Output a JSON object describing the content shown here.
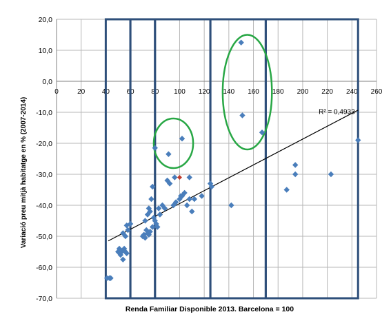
{
  "chart_data": {
    "type": "scatter",
    "xlabel": "Renda Familiar Disponible 2013. Barcelona = 100",
    "ylabel": "Variació preu mitjà habitatge en % (2007-2014)",
    "xlim": [
      0,
      260
    ],
    "ylim": [
      -70,
      20
    ],
    "x_ticks": [
      0,
      20,
      40,
      60,
      80,
      100,
      120,
      140,
      160,
      180,
      200,
      220,
      240,
      260
    ],
    "y_ticks": [
      20,
      10,
      0,
      -10,
      -20,
      -30,
      -40,
      -50,
      -60,
      -70
    ],
    "y_tick_labels": [
      "20,0",
      "10,0",
      "0,0",
      "-10,0",
      "-20,0",
      "-30,0",
      "-40,0",
      "-50,0",
      "-60,0",
      "-70,0"
    ],
    "grid": true,
    "trendline": {
      "r2_label": "R² = 0,4933",
      "x": [
        42,
        245
      ],
      "y": [
        -51.5,
        -9.3
      ]
    },
    "points": [
      [
        41,
        -63.5
      ],
      [
        43,
        -63.5
      ],
      [
        44,
        -63.5
      ],
      [
        50,
        -55
      ],
      [
        51,
        -54
      ],
      [
        52,
        -56
      ],
      [
        53,
        -55
      ],
      [
        54,
        -57.5
      ],
      [
        55,
        -54
      ],
      [
        56,
        -55
      ],
      [
        57,
        -55.5
      ],
      [
        54,
        -49
      ],
      [
        56,
        -50
      ],
      [
        57,
        -46.5
      ],
      [
        58,
        -48
      ],
      [
        60,
        -46
      ],
      [
        70,
        -50
      ],
      [
        71,
        -49.5
      ],
      [
        72,
        -50.5
      ],
      [
        73,
        -48
      ],
      [
        74,
        -49
      ],
      [
        75,
        -49.5
      ],
      [
        76,
        -48.5
      ],
      [
        78,
        -47
      ],
      [
        72,
        -45
      ],
      [
        74,
        -43
      ],
      [
        75,
        -41
      ],
      [
        76,
        -42
      ],
      [
        77,
        -38
      ],
      [
        78,
        -34
      ],
      [
        79,
        -44
      ],
      [
        80,
        -45
      ],
      [
        81,
        -46
      ],
      [
        82,
        -47
      ],
      [
        83,
        -41
      ],
      [
        84,
        -43
      ],
      [
        86,
        -40
      ],
      [
        88,
        -41
      ],
      [
        90,
        -32
      ],
      [
        92,
        -33
      ],
      [
        95,
        -40
      ],
      [
        97,
        -39
      ],
      [
        100,
        -38
      ],
      [
        101,
        -37
      ],
      [
        102,
        -37
      ],
      [
        104,
        -36
      ],
      [
        106,
        -40
      ],
      [
        108,
        -38
      ],
      [
        110,
        -42
      ],
      [
        112,
        -38
      ],
      [
        96,
        -31
      ],
      [
        108,
        -31
      ],
      [
        118,
        -37
      ],
      [
        125,
        -33
      ],
      [
        126,
        -34
      ],
      [
        80,
        -21.5
      ],
      [
        91,
        -23.5
      ],
      [
        102,
        -18.5
      ],
      [
        142,
        -40
      ],
      [
        150,
        12.5
      ],
      [
        151,
        -11
      ],
      [
        167,
        -16.5
      ],
      [
        187,
        -35
      ],
      [
        194,
        -27
      ],
      [
        194,
        -30
      ],
      [
        223,
        -30
      ],
      [
        245,
        -19
      ]
    ],
    "highlight_point": [
      100,
      -31
    ],
    "colors": {
      "points": "#4a7ebb",
      "highlight": "#c0392b",
      "boxes": "#2e4f7a",
      "ellipses": "#28a745",
      "trend": "#000000",
      "grid": "#b7b7b7"
    }
  }
}
